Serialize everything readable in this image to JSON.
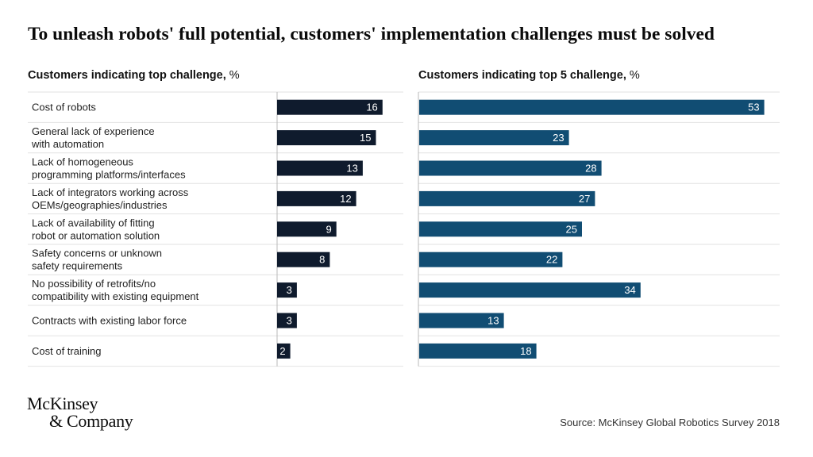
{
  "title": "To unleash robots' full potential, customers' implementation challenges must be solved",
  "source": "Source: McKinsey Global Robotics Survey 2018",
  "logo": {
    "line1": "McKinsey",
    "line2": "& Company"
  },
  "colors": {
    "left_bar": "#0f1b2d",
    "right_bar": "#114d73",
    "divider": "#e2e2e2",
    "axis": "#b8b8b8"
  },
  "chart_data": [
    {
      "type": "bar",
      "orientation": "horizontal",
      "title_bold": "Customers indicating top challenge,",
      "title_unit": "%",
      "categories": [
        "Cost of robots",
        "General lack of experience with automation",
        "Lack of homogeneous programming platforms/interfaces",
        "Lack of integrators working across OEMs/geographies/industries",
        "Lack of availability of fitting robot or automation solution",
        "Safety concerns or unknown safety requirements",
        "No possibility of retrofits/no compatibility with existing equipment",
        "Contracts with existing labor force",
        "Cost of training"
      ],
      "category_lines": [
        [
          "Cost of robots"
        ],
        [
          "General lack of experience",
          "with automation"
        ],
        [
          "Lack of homogeneous",
          "programming platforms/interfaces"
        ],
        [
          "Lack of integrators working across",
          "OEMs/geographies/industries"
        ],
        [
          "Lack of availability of fitting",
          "robot or automation solution"
        ],
        [
          "Safety concerns or unknown",
          "safety requirements"
        ],
        [
          "No possibility of retrofits/no",
          "compatibility with existing equipment"
        ],
        [
          "Contracts with existing labor force"
        ],
        [
          "Cost of training"
        ]
      ],
      "values": [
        16,
        15,
        13,
        12,
        9,
        8,
        3,
        3,
        2
      ],
      "unit": "%"
    },
    {
      "type": "bar",
      "orientation": "horizontal",
      "title_bold": "Customers indicating top 5 challenge,",
      "title_unit": "%",
      "categories": [
        "Cost of robots",
        "General lack of experience with automation",
        "Lack of homogeneous programming platforms/interfaces",
        "Lack of integrators working across OEMs/geographies/industries",
        "Lack of availability of fitting robot or automation solution",
        "Safety concerns or unknown safety requirements",
        "No possibility of retrofits/no compatibility with existing equipment",
        "Contracts with existing labor force",
        "Cost of training"
      ],
      "values": [
        53,
        23,
        28,
        27,
        25,
        22,
        34,
        13,
        18
      ],
      "unit": "%"
    }
  ]
}
